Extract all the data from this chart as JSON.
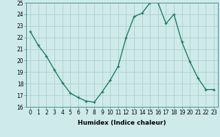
{
  "x": [
    0,
    1,
    2,
    3,
    4,
    5,
    6,
    7,
    8,
    9,
    10,
    11,
    12,
    13,
    14,
    15,
    16,
    17,
    18,
    19,
    20,
    21,
    22,
    23
  ],
  "y": [
    22.5,
    21.3,
    20.4,
    19.2,
    18.1,
    17.2,
    16.8,
    16.5,
    16.4,
    17.3,
    18.3,
    19.5,
    22.0,
    23.8,
    24.1,
    25.0,
    25.0,
    23.2,
    24.0,
    21.6,
    19.9,
    18.5,
    17.5,
    17.5
  ],
  "line_color": "#1a7a5e",
  "marker": "+",
  "bg_color": "#ceeaea",
  "grid_color": "#aecece",
  "xlabel": "Humidex (Indice chaleur)",
  "ylim": [
    16,
    25
  ],
  "xlim": [
    -0.5,
    23.5
  ],
  "yticks": [
    16,
    17,
    18,
    19,
    20,
    21,
    22,
    23,
    24,
    25
  ],
  "xticks": [
    0,
    1,
    2,
    3,
    4,
    5,
    6,
    7,
    8,
    9,
    10,
    11,
    12,
    13,
    14,
    15,
    16,
    17,
    18,
    19,
    20,
    21,
    22,
    23
  ],
  "tick_fontsize": 5.5,
  "xlabel_fontsize": 6.5,
  "linewidth": 1.0
}
